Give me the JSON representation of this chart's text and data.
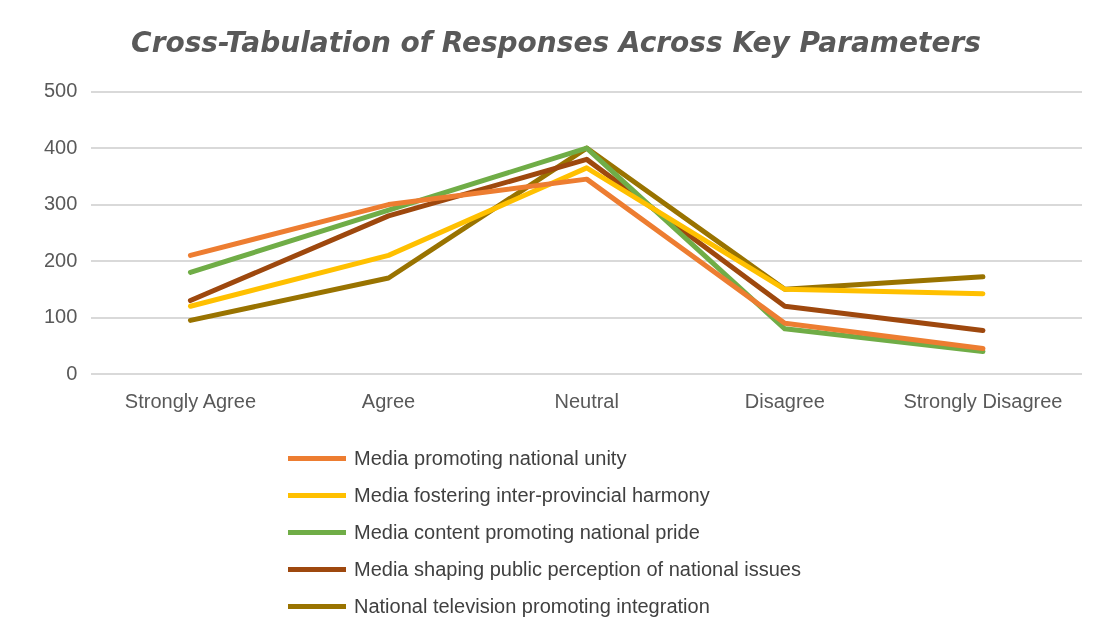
{
  "chart_data": {
    "type": "line",
    "title": "Cross-Tabulation of Responses Across Key Parameters",
    "categories": [
      "Strongly Agree",
      "Agree",
      "Neutral",
      "Disagree",
      "Strongly Disagree"
    ],
    "series": [
      {
        "name": "Media promoting national unity",
        "color": "#ed7d31",
        "values": [
          210,
          300,
          345,
          90,
          45
        ]
      },
      {
        "name": "Media fostering inter-provincial harmony",
        "color": "#ffc000",
        "values": [
          120,
          210,
          365,
          150,
          142
        ]
      },
      {
        "name": "Media content promoting national pride",
        "color": "#70ad47",
        "values": [
          180,
          290,
          400,
          80,
          40
        ]
      },
      {
        "name": "Media shaping public perception of national issues",
        "color": "#9e480e",
        "values": [
          130,
          280,
          380,
          120,
          77
        ]
      },
      {
        "name": "National television promoting integration",
        "color": "#997300",
        "values": [
          95,
          170,
          400,
          150,
          172
        ]
      }
    ],
    "ylim": [
      0,
      500
    ],
    "yticks": [
      0,
      100,
      200,
      300,
      400,
      500
    ],
    "grid": "y",
    "legend": "bottom",
    "marker": "none",
    "line_style": "solid"
  }
}
